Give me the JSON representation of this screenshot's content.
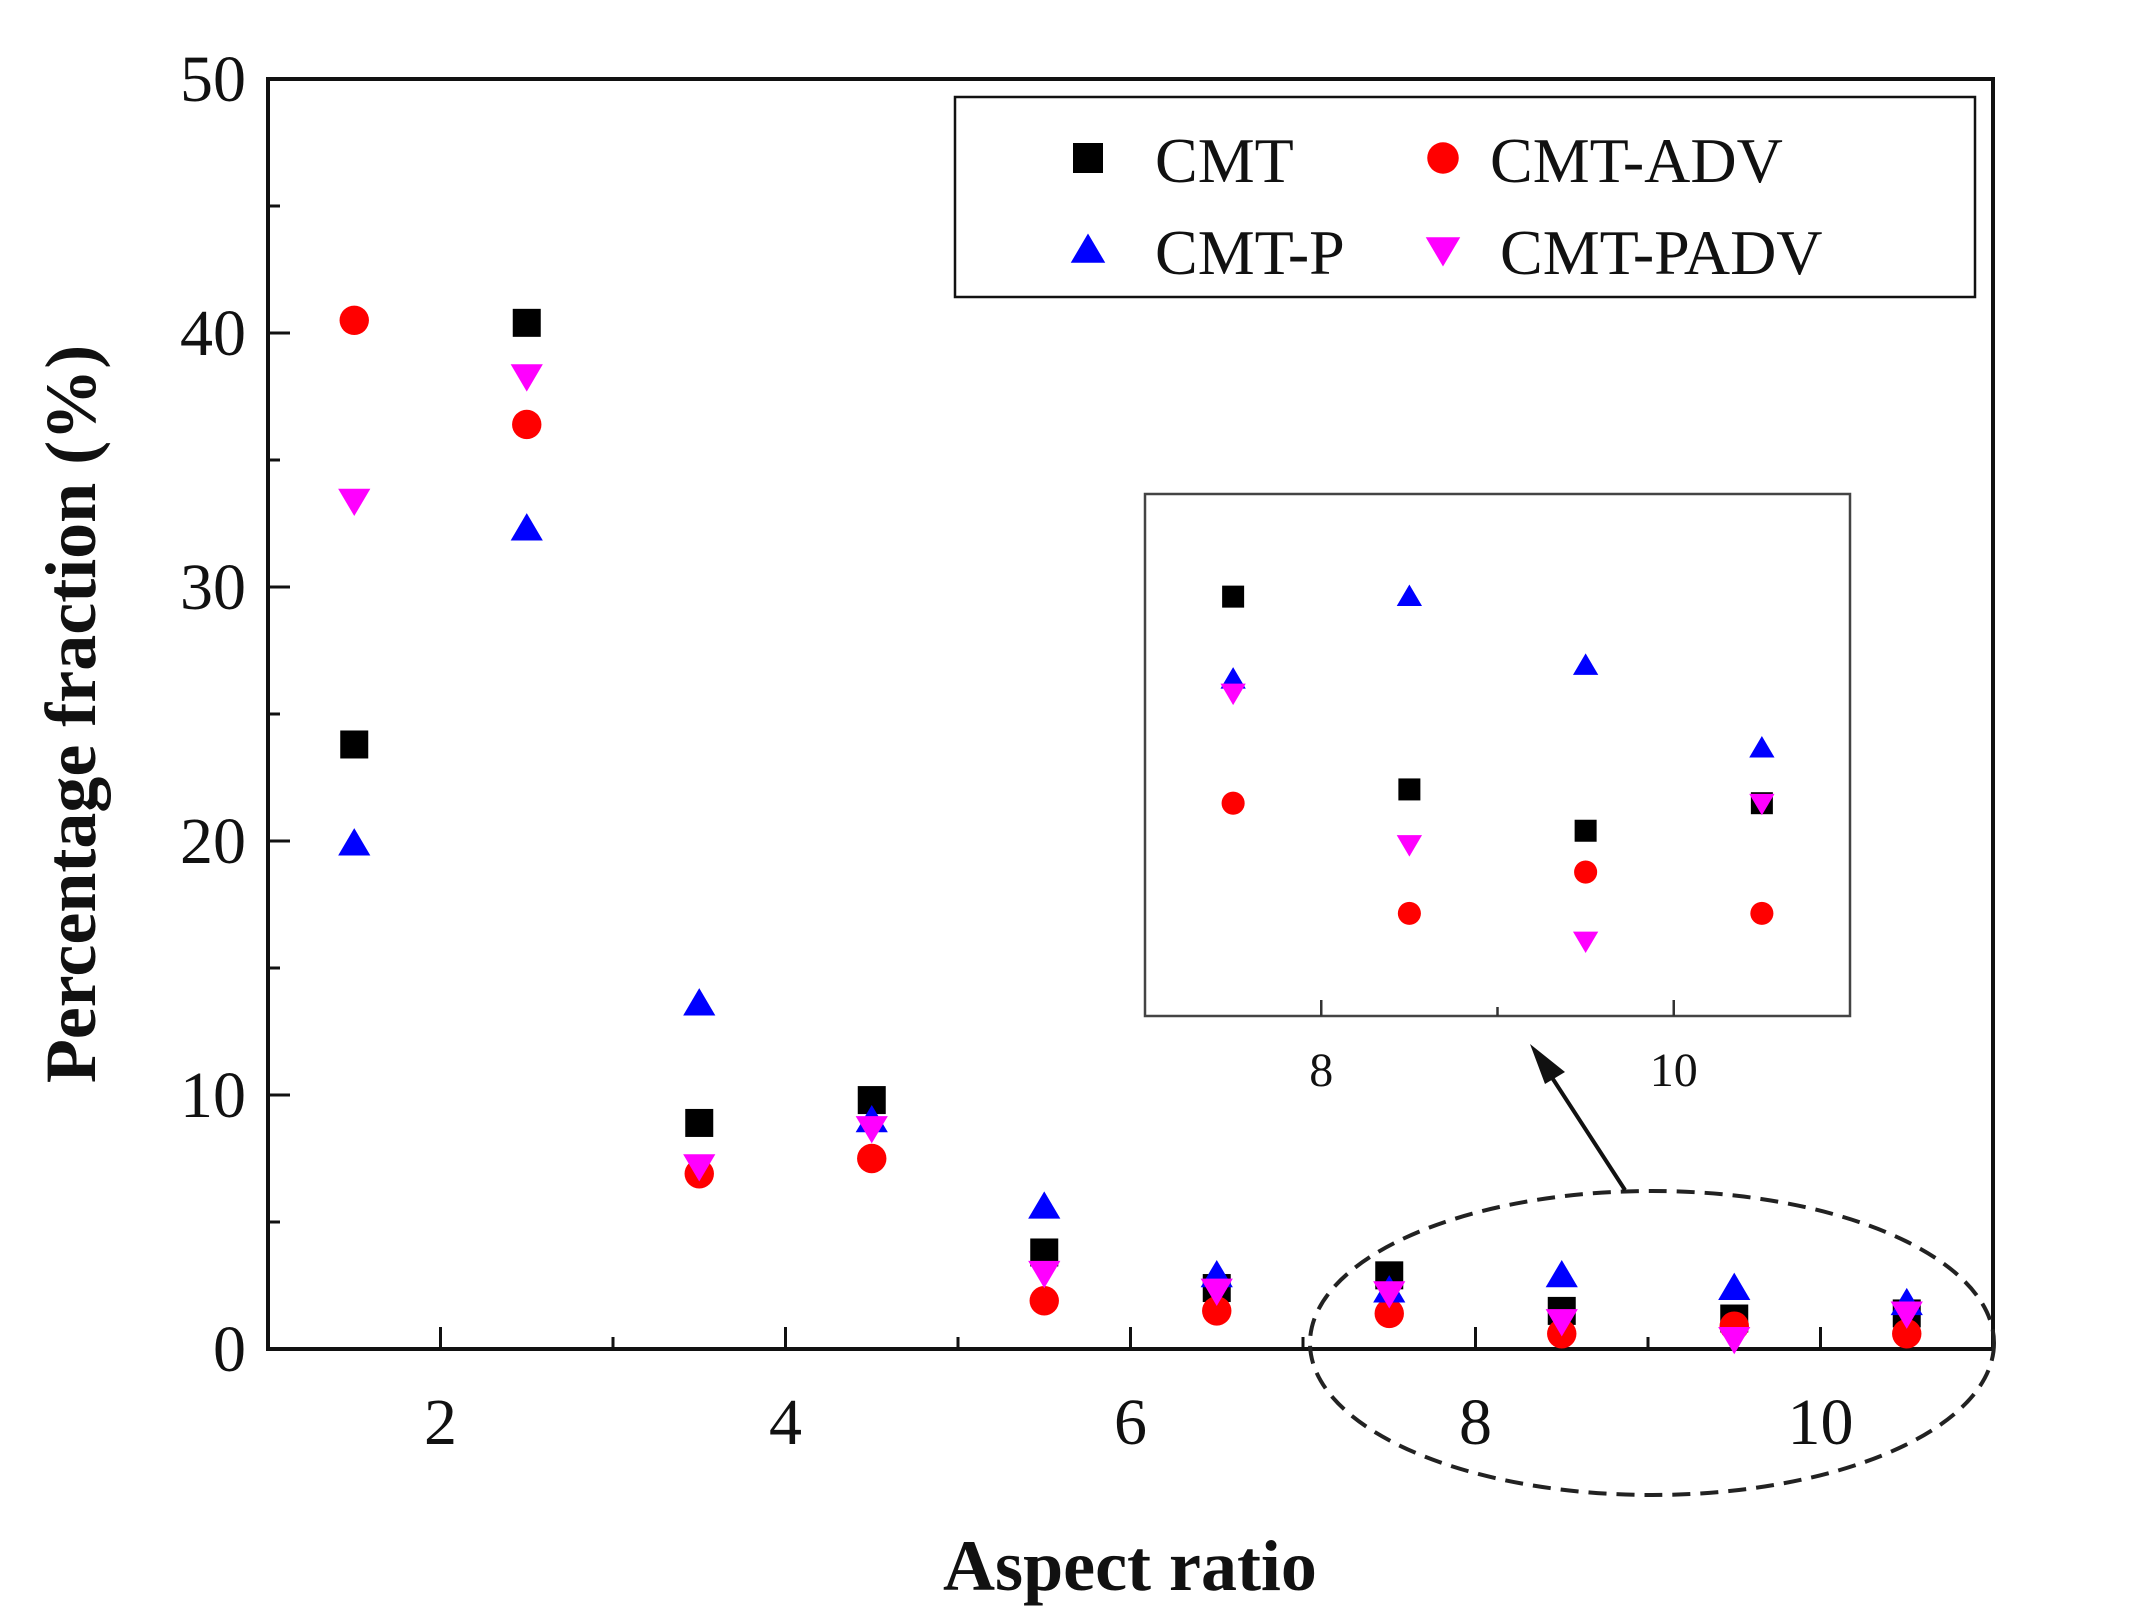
{
  "chart_data": {
    "type": "scatter",
    "xlabel": "Aspect ratio",
    "ylabel": "Percentage fraction (%)",
    "xlim": [
      1,
      11
    ],
    "ylim": [
      0,
      50
    ],
    "x_ticks": [
      2,
      4,
      6,
      8,
      10
    ],
    "y_ticks": [
      0,
      10,
      20,
      30,
      40,
      50
    ],
    "legend_position": "top-right",
    "x": [
      1.5,
      2.5,
      3.5,
      4.5,
      5.5,
      6.5,
      7.5,
      8.5,
      9.5,
      10.5
    ],
    "series": [
      {
        "name": "CMT",
        "marker": "square",
        "color": "#000000",
        "values": [
          23.8,
          40.4,
          8.9,
          9.8,
          3.8,
          2.4,
          2.9,
          1.5,
          1.2,
          1.4
        ]
      },
      {
        "name": "CMT-ADV",
        "marker": "circle",
        "color": "#ff0000",
        "values": [
          40.5,
          36.4,
          6.9,
          7.5,
          1.9,
          1.5,
          1.4,
          0.6,
          0.9,
          0.6
        ]
      },
      {
        "name": "CMT-P",
        "marker": "triangle-up",
        "color": "#0000ff",
        "values": [
          19.9,
          32.3,
          13.6,
          9.0,
          5.6,
          2.9,
          2.3,
          2.9,
          2.4,
          1.8
        ]
      },
      {
        "name": "CMT-PADV",
        "marker": "triangle-down",
        "color": "#ff00ff",
        "values": [
          33.4,
          38.3,
          7.2,
          8.7,
          3.0,
          2.3,
          2.2,
          1.1,
          0.4,
          1.4
        ]
      }
    ],
    "inset": {
      "x_ticks": [
        8,
        10
      ],
      "xlim": [
        7,
        11
      ],
      "ylim": [
        0,
        3.5
      ],
      "x_range_shown": [
        7.5,
        10.5
      ],
      "annotation": "dashed ellipse with arrow highlighting aspect ratio 7.5–10.5"
    }
  }
}
